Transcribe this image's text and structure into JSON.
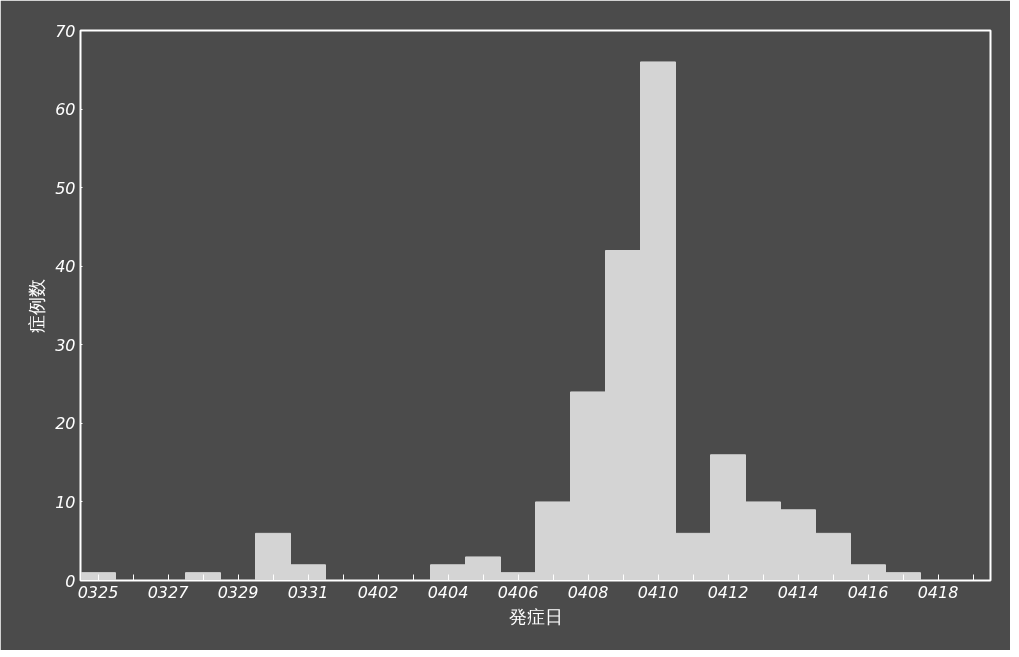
{
  "chart_data": {
    "type": "bar",
    "xlabel": "発症日",
    "ylabel": "症例数",
    "categories": [
      "0325",
      null,
      "0327",
      null,
      "0329",
      null,
      "0331",
      null,
      "0402",
      null,
      "0404",
      null,
      "0406",
      null,
      "0408",
      null,
      "0410",
      null,
      "0412",
      null,
      "0414",
      null,
      "0416",
      null,
      "0418",
      null
    ],
    "values": [
      1,
      0,
      0,
      1,
      0,
      6,
      2,
      0,
      0,
      0,
      2,
      3,
      1,
      10,
      24,
      42,
      66,
      6,
      16,
      10,
      9,
      6,
      2,
      1,
      0,
      0
    ],
    "color": "#d4d4d4",
    "ylim": [
      0,
      70
    ],
    "yticks": [
      0,
      10,
      20,
      30,
      40,
      50,
      60,
      70
    ],
    "grid": false
  }
}
